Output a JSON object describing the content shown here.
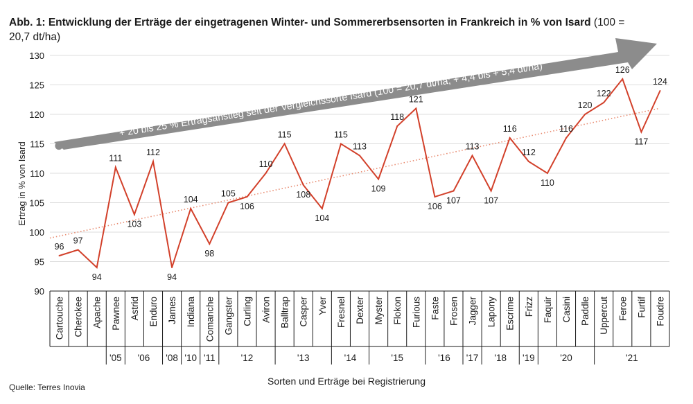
{
  "title": {
    "bold": "Abb. 1: Entwicklung der Erträge der eingetragenen Winter- und Sommererbsensorten in Frankreich in % von Isard",
    "normal": " (100 = 20,7 dt/ha)"
  },
  "source": "Quelle: Terres Inovia",
  "arrow_text": "+ 20 bis 25 % Ertragsanstieg seit der Vergleichssorte Isard (100 = 20,7 dt/ha; + 4,4 bis + 5,4 dt/ha)",
  "colors": {
    "line": "#d2402a",
    "trend": "#e8896e",
    "arrow": "#8c8c8c",
    "grid": "#dcdcdc"
  },
  "chart_data": {
    "type": "line",
    "title": "Abb. 1: Entwicklung der Erträge der eingetragenen Winter- und Sommererbsensorten in Frankreich in % von Isard (100 = 20,7 dt/ha)",
    "xlabel": "Sorten und Erträge bei Registrierung",
    "ylabel": "Ertrag in % von Isard",
    "ylim": [
      90,
      130
    ],
    "yticks": [
      90,
      95,
      100,
      105,
      110,
      115,
      120,
      125,
      130
    ],
    "grid": true,
    "categories": [
      "Cartouche",
      "Cherokee",
      "Apache",
      "Pawnee",
      "Astrid",
      "Enduro",
      "James",
      "Indiana",
      "Comanche",
      "Gangster",
      "Curling",
      "Aviron",
      "Balltrap",
      "Casper",
      "Yver",
      "Fresnel",
      "Dexter",
      "Myster",
      "Flokon",
      "Furious",
      "Faste",
      "Frosen",
      "Jagger",
      "Lapony",
      "Escrime",
      "Frizz",
      "Faquir",
      "Casini",
      "Paddle",
      "Uppercut",
      "Feroe",
      "Furtif",
      "Foudre"
    ],
    "values": [
      96,
      97,
      94,
      111,
      103,
      112,
      94,
      104,
      98,
      105,
      106,
      110,
      115,
      108,
      104,
      115,
      113,
      109,
      118,
      121,
      106,
      107,
      113,
      107,
      116,
      112,
      110,
      116,
      120,
      122,
      126,
      117,
      124
    ],
    "labels": [
      "96",
      "97",
      "94",
      "111",
      "103",
      "112",
      "94",
      "104",
      "98",
      "105",
      "106",
      "110",
      "115",
      "108",
      "104",
      "115",
      "113",
      "109",
      "118",
      "121",
      "106",
      "107",
      "113",
      "107",
      "116",
      "112",
      "110",
      "116",
      "120",
      "122",
      "126",
      "117",
      "124"
    ],
    "label_pos": [
      "above",
      "above",
      "below",
      "above",
      "below",
      "above",
      "below",
      "above",
      "below",
      "above",
      "below",
      "above",
      "above",
      "below",
      "below",
      "above",
      "above",
      "below",
      "above",
      "above",
      "below",
      "below",
      "above",
      "below",
      "above",
      "above",
      "below",
      "above",
      "above",
      "above",
      "above",
      "below",
      "above"
    ],
    "year_groups": [
      {
        "label": "",
        "count": 3
      },
      {
        "label": "'05",
        "count": 1
      },
      {
        "label": "'06",
        "count": 2
      },
      {
        "label": "'08",
        "count": 1
      },
      {
        "label": "'10",
        "count": 1
      },
      {
        "label": "'11",
        "count": 1
      },
      {
        "label": "'12",
        "count": 3
      },
      {
        "label": "'13",
        "count": 3
      },
      {
        "label": "'14",
        "count": 2
      },
      {
        "label": "'15",
        "count": 3
      },
      {
        "label": "'16",
        "count": 2
      },
      {
        "label": "'17",
        "count": 1
      },
      {
        "label": "'18",
        "count": 2
      },
      {
        "label": "'19",
        "count": 1
      },
      {
        "label": "'20",
        "count": 3
      },
      {
        "label": "'21",
        "count": 4
      }
    ],
    "trend": {
      "start": 99.0,
      "end": 121.0
    }
  }
}
